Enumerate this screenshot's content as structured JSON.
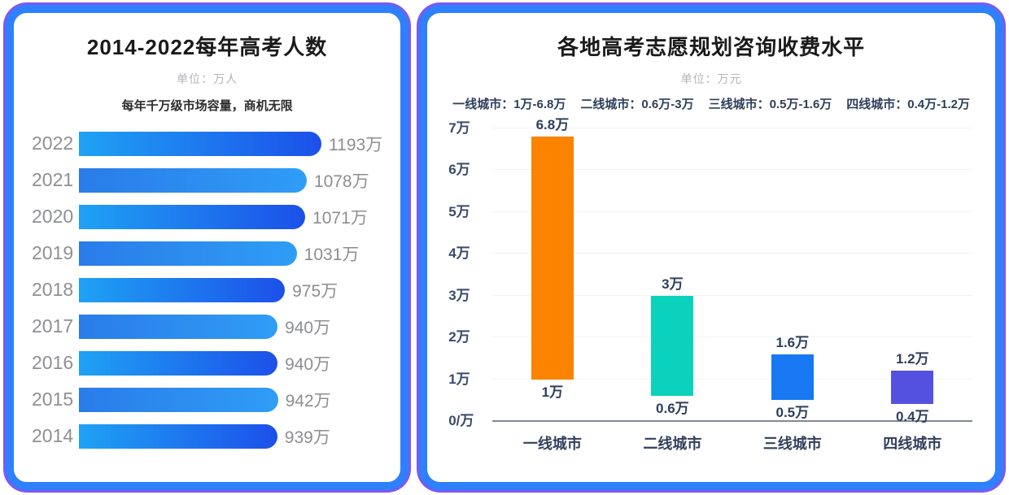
{
  "left_panel": {
    "title": "2014-2022每年高考人数",
    "unit": "单位：万人",
    "tagline": "每年千万级市场容量，商机无限"
  },
  "right_panel": {
    "title": "各地高考志愿规划咨询收费水平",
    "unit": "单位：万元",
    "legend_items": [
      "一线城市：1万-6.8万",
      "二线城市：0.6万-3万",
      "三线城市：0.5万-1.6万",
      "四线城市：0.4万-1.2万"
    ]
  },
  "colors": {
    "card_border": "#2E80FD",
    "card_outline": "#7E58F2",
    "bar_gradient_even": [
      "#1FA2F4",
      "#1C50E9"
    ],
    "bar_gradient_odd": [
      "#2A7CE9",
      "#2F9DF6"
    ],
    "grid": "#F1F3F6",
    "axis": "#828A96"
  },
  "chart_data": [
    {
      "type": "bar",
      "orientation": "horizontal",
      "title": "2014-2022每年高考人数",
      "unit": "万人",
      "subtitle": "每年千万级市场容量，商机无限",
      "categories": [
        "2022",
        "2021",
        "2020",
        "2019",
        "2018",
        "2017",
        "2016",
        "2015",
        "2014"
      ],
      "values": [
        1193,
        1078,
        1071,
        1031,
        975,
        940,
        940,
        942,
        939
      ],
      "value_labels": [
        "1193万",
        "1078万",
        "1071万",
        "1031万",
        "975万",
        "940万",
        "940万",
        "942万",
        "939万"
      ],
      "xlim": [
        0,
        1193
      ],
      "grid": false,
      "legend_position": "none"
    },
    {
      "type": "bar",
      "subtype": "floating-range",
      "title": "各地高考志愿规划咨询收费水平",
      "unit": "万元",
      "categories": [
        "一线城市",
        "二线城市",
        "三线城市",
        "四线城市"
      ],
      "series": [
        {
          "name": "min",
          "values": [
            1,
            0.6,
            0.5,
            0.4
          ]
        },
        {
          "name": "max",
          "values": [
            6.8,
            3,
            1.6,
            1.2
          ]
        }
      ],
      "min_labels": [
        "1万",
        "0.6万",
        "0.5万",
        "0.4万"
      ],
      "max_labels": [
        "6.8万",
        "3万",
        "1.6万",
        "1.2万"
      ],
      "bar_colors": [
        "#FB8300",
        "#0BD2BD",
        "#1778F2",
        "#5551E0"
      ],
      "y_tick_labels": [
        "7万",
        "6万",
        "5万",
        "4万",
        "3万",
        "2万",
        "1万"
      ],
      "y_tick_values": [
        7,
        6,
        5,
        4,
        3,
        2,
        1
      ],
      "zero_label": "0/万",
      "ylim": [
        0,
        7.2
      ],
      "grid": true,
      "legend_position": "top"
    }
  ]
}
